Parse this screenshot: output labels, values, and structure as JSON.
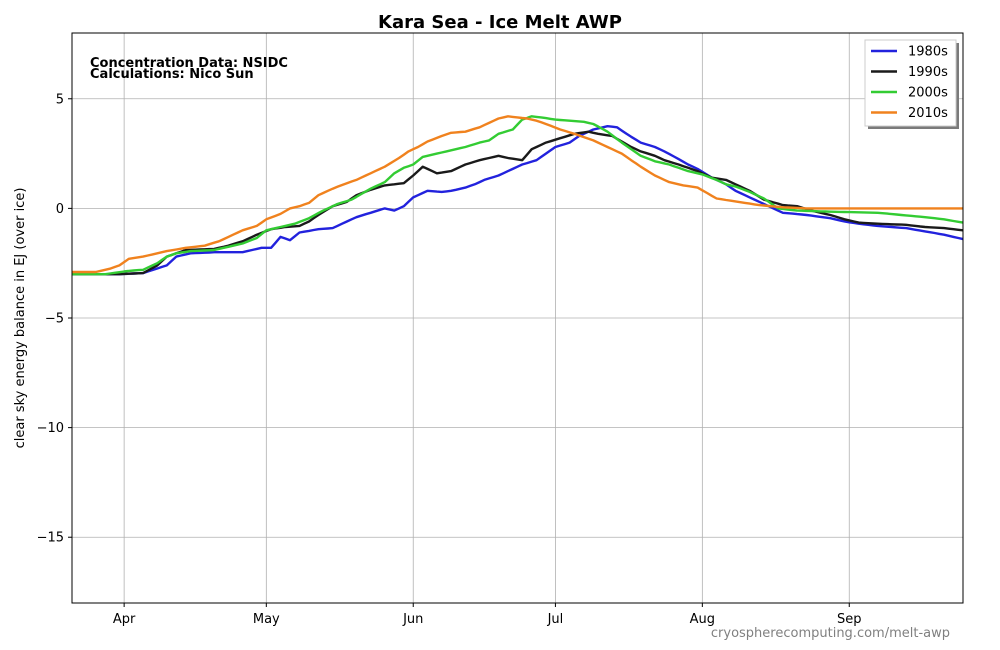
{
  "chart_data": {
    "type": "line",
    "title": "Kara Sea - Ice Melt AWP",
    "ylabel": "clear sky energy balance in EJ (over ice)",
    "xlabel": "",
    "ylim": [
      -18,
      8
    ],
    "yticks": [
      5,
      0,
      -5,
      -10,
      -15
    ],
    "ytick_labels": [
      "5",
      "0",
      "−5",
      "−10",
      "−15"
    ],
    "xlim": [
      80,
      268
    ],
    "xticks": [
      {
        "label": "Apr",
        "day": 91
      },
      {
        "label": "May",
        "day": 121
      },
      {
        "label": "Jun",
        "day": 152
      },
      {
        "label": "Jul",
        "day": 182
      },
      {
        "label": "Aug",
        "day": 213
      },
      {
        "label": "Sep",
        "day": 244
      }
    ],
    "grid": true,
    "legend_position": "top-right",
    "annotations": [
      "Concentration Data: NSIDC",
      "Calculations: Nico Sun"
    ],
    "credit": "cryospherecomputing.com/melt-awp",
    "series": [
      {
        "name": "1980s",
        "color": "#2222dd",
        "points": [
          [
            80,
            -3.0
          ],
          [
            90,
            -3.0
          ],
          [
            95,
            -2.95
          ],
          [
            100,
            -2.6
          ],
          [
            102,
            -2.2
          ],
          [
            105,
            -2.05
          ],
          [
            110,
            -2.0
          ],
          [
            116,
            -2.0
          ],
          [
            120,
            -1.8
          ],
          [
            122,
            -1.8
          ],
          [
            124,
            -1.3
          ],
          [
            126,
            -1.45
          ],
          [
            128,
            -1.1
          ],
          [
            132,
            -0.95
          ],
          [
            135,
            -0.9
          ],
          [
            138,
            -0.6
          ],
          [
            140,
            -0.4
          ],
          [
            143,
            -0.2
          ],
          [
            146,
            0.0
          ],
          [
            148,
            -0.1
          ],
          [
            150,
            0.1
          ],
          [
            152,
            0.5
          ],
          [
            155,
            0.8
          ],
          [
            158,
            0.75
          ],
          [
            160,
            0.8
          ],
          [
            163,
            0.95
          ],
          [
            165,
            1.1
          ],
          [
            167,
            1.3
          ],
          [
            170,
            1.5
          ],
          [
            172,
            1.7
          ],
          [
            175,
            2.0
          ],
          [
            178,
            2.2
          ],
          [
            180,
            2.5
          ],
          [
            182,
            2.8
          ],
          [
            185,
            3.0
          ],
          [
            187,
            3.3
          ],
          [
            190,
            3.6
          ],
          [
            193,
            3.75
          ],
          [
            195,
            3.7
          ],
          [
            197,
            3.4
          ],
          [
            200,
            3.0
          ],
          [
            203,
            2.8
          ],
          [
            205,
            2.6
          ],
          [
            208,
            2.25
          ],
          [
            210,
            2.0
          ],
          [
            212,
            1.8
          ],
          [
            215,
            1.4
          ],
          [
            218,
            1.1
          ],
          [
            220,
            0.8
          ],
          [
            223,
            0.5
          ],
          [
            226,
            0.2
          ],
          [
            230,
            -0.2
          ],
          [
            235,
            -0.3
          ],
          [
            240,
            -0.45
          ],
          [
            243,
            -0.6
          ],
          [
            246,
            -0.7
          ],
          [
            250,
            -0.8
          ],
          [
            256,
            -0.9
          ],
          [
            260,
            -1.05
          ],
          [
            264,
            -1.2
          ],
          [
            268,
            -1.4
          ]
        ]
      },
      {
        "name": "1990s",
        "color": "#1a1a1a",
        "points": [
          [
            80,
            -3.0
          ],
          [
            90,
            -3.0
          ],
          [
            95,
            -2.95
          ],
          [
            98,
            -2.6
          ],
          [
            100,
            -2.2
          ],
          [
            104,
            -1.9
          ],
          [
            110,
            -1.85
          ],
          [
            113,
            -1.7
          ],
          [
            116,
            -1.5
          ],
          [
            119,
            -1.2
          ],
          [
            122,
            -0.95
          ],
          [
            125,
            -0.85
          ],
          [
            128,
            -0.8
          ],
          [
            130,
            -0.6
          ],
          [
            132,
            -0.3
          ],
          [
            135,
            0.1
          ],
          [
            138,
            0.3
          ],
          [
            140,
            0.6
          ],
          [
            143,
            0.85
          ],
          [
            146,
            1.05
          ],
          [
            150,
            1.15
          ],
          [
            152,
            1.5
          ],
          [
            154,
            1.9
          ],
          [
            157,
            1.6
          ],
          [
            160,
            1.7
          ],
          [
            163,
            2.0
          ],
          [
            166,
            2.2
          ],
          [
            168,
            2.3
          ],
          [
            170,
            2.4
          ],
          [
            172,
            2.3
          ],
          [
            175,
            2.2
          ],
          [
            177,
            2.7
          ],
          [
            180,
            3.0
          ],
          [
            183,
            3.2
          ],
          [
            186,
            3.4
          ],
          [
            189,
            3.5
          ],
          [
            191,
            3.4
          ],
          [
            194,
            3.3
          ],
          [
            196,
            3.05
          ],
          [
            198,
            2.8
          ],
          [
            200,
            2.6
          ],
          [
            203,
            2.4
          ],
          [
            205,
            2.2
          ],
          [
            208,
            2.0
          ],
          [
            210,
            1.85
          ],
          [
            212,
            1.7
          ],
          [
            215,
            1.4
          ],
          [
            218,
            1.3
          ],
          [
            220,
            1.1
          ],
          [
            223,
            0.8
          ],
          [
            226,
            0.4
          ],
          [
            230,
            0.15
          ],
          [
            233,
            0.1
          ],
          [
            236,
            -0.1
          ],
          [
            240,
            -0.3
          ],
          [
            243,
            -0.5
          ],
          [
            246,
            -0.65
          ],
          [
            250,
            -0.7
          ],
          [
            256,
            -0.75
          ],
          [
            260,
            -0.85
          ],
          [
            264,
            -0.9
          ],
          [
            268,
            -1.0
          ]
        ]
      },
      {
        "name": "2000s",
        "color": "#33cc33",
        "points": [
          [
            80,
            -3.0
          ],
          [
            87,
            -3.0
          ],
          [
            92,
            -2.85
          ],
          [
            95,
            -2.8
          ],
          [
            98,
            -2.5
          ],
          [
            100,
            -2.2
          ],
          [
            102,
            -2.05
          ],
          [
            105,
            -1.95
          ],
          [
            110,
            -1.9
          ],
          [
            113,
            -1.75
          ],
          [
            116,
            -1.6
          ],
          [
            119,
            -1.35
          ],
          [
            121,
            -1.0
          ],
          [
            124,
            -0.85
          ],
          [
            127,
            -0.7
          ],
          [
            130,
            -0.45
          ],
          [
            133,
            -0.1
          ],
          [
            136,
            0.2
          ],
          [
            139,
            0.4
          ],
          [
            141,
            0.65
          ],
          [
            143,
            0.9
          ],
          [
            146,
            1.2
          ],
          [
            148,
            1.6
          ],
          [
            150,
            1.85
          ],
          [
            152,
            2.0
          ],
          [
            154,
            2.35
          ],
          [
            157,
            2.5
          ],
          [
            160,
            2.65
          ],
          [
            163,
            2.8
          ],
          [
            166,
            3.0
          ],
          [
            168,
            3.1
          ],
          [
            170,
            3.4
          ],
          [
            173,
            3.6
          ],
          [
            175,
            4.05
          ],
          [
            177,
            4.2
          ],
          [
            179,
            4.15
          ],
          [
            182,
            4.05
          ],
          [
            185,
            4.0
          ],
          [
            188,
            3.95
          ],
          [
            190,
            3.85
          ],
          [
            193,
            3.5
          ],
          [
            196,
            3.0
          ],
          [
            198,
            2.7
          ],
          [
            200,
            2.4
          ],
          [
            203,
            2.15
          ],
          [
            206,
            2.0
          ],
          [
            208,
            1.85
          ],
          [
            210,
            1.7
          ],
          [
            213,
            1.55
          ],
          [
            216,
            1.3
          ],
          [
            218,
            1.1
          ],
          [
            220,
            1.0
          ],
          [
            223,
            0.75
          ],
          [
            226,
            0.45
          ],
          [
            229,
            0.0
          ],
          [
            233,
            -0.1
          ],
          [
            240,
            -0.15
          ],
          [
            250,
            -0.2
          ],
          [
            255,
            -0.3
          ],
          [
            260,
            -0.4
          ],
          [
            264,
            -0.5
          ],
          [
            268,
            -0.65
          ]
        ]
      },
      {
        "name": "2010s",
        "color": "#f0821e",
        "points": [
          [
            80,
            -2.9
          ],
          [
            85,
            -2.9
          ],
          [
            88,
            -2.75
          ],
          [
            90,
            -2.6
          ],
          [
            92,
            -2.3
          ],
          [
            95,
            -2.2
          ],
          [
            98,
            -2.05
          ],
          [
            100,
            -1.95
          ],
          [
            104,
            -1.8
          ],
          [
            108,
            -1.7
          ],
          [
            111,
            -1.5
          ],
          [
            114,
            -1.2
          ],
          [
            116,
            -1.0
          ],
          [
            119,
            -0.8
          ],
          [
            121,
            -0.5
          ],
          [
            124,
            -0.25
          ],
          [
            126,
            0.0
          ],
          [
            128,
            0.1
          ],
          [
            130,
            0.25
          ],
          [
            132,
            0.6
          ],
          [
            135,
            0.9
          ],
          [
            138,
            1.15
          ],
          [
            140,
            1.3
          ],
          [
            143,
            1.6
          ],
          [
            146,
            1.9
          ],
          [
            149,
            2.3
          ],
          [
            151,
            2.6
          ],
          [
            153,
            2.8
          ],
          [
            155,
            3.05
          ],
          [
            158,
            3.3
          ],
          [
            160,
            3.45
          ],
          [
            163,
            3.5
          ],
          [
            166,
            3.7
          ],
          [
            168,
            3.9
          ],
          [
            170,
            4.1
          ],
          [
            172,
            4.2
          ],
          [
            174,
            4.15
          ],
          [
            176,
            4.1
          ],
          [
            178,
            4.0
          ],
          [
            180,
            3.85
          ],
          [
            183,
            3.6
          ],
          [
            186,
            3.4
          ],
          [
            188,
            3.25
          ],
          [
            190,
            3.1
          ],
          [
            193,
            2.8
          ],
          [
            196,
            2.5
          ],
          [
            198,
            2.2
          ],
          [
            200,
            1.9
          ],
          [
            203,
            1.5
          ],
          [
            206,
            1.2
          ],
          [
            209,
            1.05
          ],
          [
            212,
            0.95
          ],
          [
            214,
            0.7
          ],
          [
            216,
            0.45
          ],
          [
            219,
            0.35
          ],
          [
            222,
            0.25
          ],
          [
            225,
            0.15
          ],
          [
            230,
            0.05
          ],
          [
            235,
            0.0
          ],
          [
            268,
            0.0
          ]
        ]
      }
    ]
  }
}
